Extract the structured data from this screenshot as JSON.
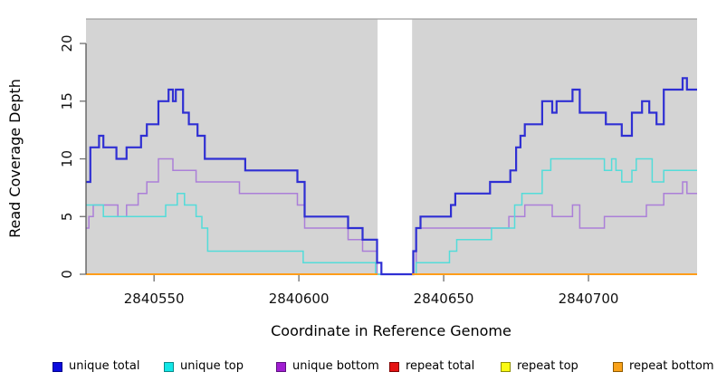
{
  "chart_data": {
    "type": "line",
    "subtype": "step-coverage",
    "title": "",
    "xlabel": "Coordinate in Reference Genome",
    "ylabel": "Read Coverage Depth",
    "xlim": [
      2840526.5,
      2840737.5
    ],
    "ylim": [
      0,
      22.12
    ],
    "grid": false,
    "panel_background": "#d4d4d4",
    "axis_color": "#4a4a4a",
    "tick_color": "#6e6e6e",
    "label_color": "#111111",
    "x_ticks": [
      {
        "value": 2840550,
        "label": "2840550"
      },
      {
        "value": 2840600,
        "label": "2840600"
      },
      {
        "value": 2840650,
        "label": "2840650"
      },
      {
        "value": 2840700,
        "label": "2840700"
      }
    ],
    "y_ticks": [
      {
        "value": 0,
        "label": "0"
      },
      {
        "value": 5,
        "label": "5"
      },
      {
        "value": 10,
        "label": "10"
      },
      {
        "value": 15,
        "label": "15"
      },
      {
        "value": 20,
        "label": "20"
      }
    ],
    "gap_region": {
      "x_start": 2840627.2,
      "x_end": 2840639.1,
      "color": "#ffffff",
      "note": "no-coverage gap; total line sits at 0 inside gap"
    },
    "top_border_color": "#9e9e9e",
    "series": [
      {
        "name": "repeat total",
        "color": "#de2020",
        "width": 2,
        "segments": [
          [
            [
              2840526.5,
              0
            ],
            [
              2840737.5,
              0
            ]
          ]
        ]
      },
      {
        "name": "repeat top",
        "color": "#f2f218",
        "width": 2,
        "segments": [
          [
            [
              2840526.5,
              0
            ],
            [
              2840737.5,
              0
            ]
          ]
        ]
      },
      {
        "name": "unique bottom",
        "color": "#ab7fd8",
        "width": 1.5,
        "segments": [
          [
            [
              2840526.5,
              4
            ],
            [
              2840527.5,
              5
            ],
            [
              2840529,
              6
            ],
            [
              2840537.5,
              5
            ],
            [
              2840540.5,
              6
            ],
            [
              2840544.5,
              7
            ],
            [
              2840547.5,
              8
            ],
            [
              2840551.5,
              10
            ],
            [
              2840556.5,
              9
            ],
            [
              2840564.5,
              8
            ],
            [
              2840579.5,
              7
            ],
            [
              2840599.5,
              6
            ],
            [
              2840602,
              4
            ],
            [
              2840617,
              3
            ],
            [
              2840622,
              2
            ],
            [
              2840627,
              0
            ],
            [
              2840640.5,
              4
            ],
            [
              2840672.5,
              5
            ],
            [
              2840678,
              6
            ],
            [
              2840687.5,
              5
            ],
            [
              2840694.5,
              6
            ],
            [
              2840697,
              4
            ],
            [
              2840705.5,
              5
            ],
            [
              2840720,
              6
            ],
            [
              2840726,
              7
            ],
            [
              2840732.5,
              8
            ],
            [
              2840734,
              7
            ],
            [
              2840737.5,
              7
            ]
          ]
        ]
      },
      {
        "name": "unique top",
        "color": "#53dcd9",
        "width": 1.5,
        "segments": [
          [
            [
              2840526.5,
              6
            ],
            [
              2840532.5,
              5
            ],
            [
              2840554,
              6
            ],
            [
              2840558,
              7
            ],
            [
              2840560.5,
              6
            ],
            [
              2840564.5,
              5
            ],
            [
              2840566.5,
              4
            ],
            [
              2840568.5,
              2
            ],
            [
              2840601.5,
              1
            ],
            [
              2840626.5,
              0
            ],
            [
              2840640.5,
              1
            ],
            [
              2840652,
              2
            ],
            [
              2840654.5,
              3
            ],
            [
              2840666.5,
              4
            ],
            [
              2840674.5,
              6
            ],
            [
              2840677,
              7
            ],
            [
              2840684,
              9
            ],
            [
              2840687,
              10
            ],
            [
              2840705.5,
              9
            ],
            [
              2840708,
              10
            ],
            [
              2840709.5,
              9
            ],
            [
              2840711.5,
              8
            ],
            [
              2840715,
              9
            ],
            [
              2840716.5,
              10
            ],
            [
              2840722,
              8
            ],
            [
              2840726,
              9
            ],
            [
              2840737.5,
              9
            ]
          ]
        ]
      },
      {
        "name": "unique total",
        "color": "#2f2fd3",
        "width": 2.2,
        "segments": [
          [
            [
              2840526.5,
              8
            ],
            [
              2840528,
              11
            ],
            [
              2840531,
              12
            ],
            [
              2840532.5,
              11
            ],
            [
              2840537,
              10
            ],
            [
              2840540.5,
              11
            ],
            [
              2840545.5,
              12
            ],
            [
              2840547.5,
              13
            ],
            [
              2840551.5,
              15
            ],
            [
              2840555,
              16
            ],
            [
              2840556.5,
              15
            ],
            [
              2840557.5,
              16
            ],
            [
              2840560,
              14
            ],
            [
              2840562,
              13
            ],
            [
              2840565,
              12
            ],
            [
              2840567.5,
              10
            ],
            [
              2840581.5,
              9
            ],
            [
              2840599.5,
              8
            ],
            [
              2840602,
              5
            ],
            [
              2840617,
              4
            ],
            [
              2840622,
              3
            ],
            [
              2840627,
              1
            ],
            [
              2840628.5,
              0
            ],
            [
              2840639.5,
              2
            ],
            [
              2840640.5,
              4
            ],
            [
              2840642,
              5
            ],
            [
              2840652.5,
              6
            ],
            [
              2840654,
              7
            ],
            [
              2840666,
              8
            ],
            [
              2840673,
              9
            ],
            [
              2840675,
              11
            ],
            [
              2840676.5,
              12
            ],
            [
              2840678,
              13
            ],
            [
              2840684,
              15
            ],
            [
              2840687.5,
              14
            ],
            [
              2840689,
              15
            ],
            [
              2840694.5,
              16
            ],
            [
              2840697,
              14
            ],
            [
              2840706,
              13
            ],
            [
              2840711.5,
              12
            ],
            [
              2840715,
              14
            ],
            [
              2840718.5,
              15
            ],
            [
              2840721,
              14
            ],
            [
              2840723.5,
              13
            ],
            [
              2840726,
              16
            ],
            [
              2840732.5,
              17
            ],
            [
              2840734,
              16
            ],
            [
              2840737.5,
              16
            ]
          ]
        ]
      },
      {
        "name": "repeat bottom",
        "color": "#ff9d1a",
        "width": 2,
        "segments": [
          [
            [
              2840526.5,
              0
            ],
            [
              2840627.2,
              0
            ]
          ],
          [
            [
              2840639.1,
              0
            ],
            [
              2840737.5,
              0
            ]
          ]
        ]
      }
    ],
    "legend": {
      "position": "bottom",
      "items": [
        {
          "label": "unique total",
          "fill": "#0b0bdf",
          "border": "#00008b"
        },
        {
          "label": "unique top",
          "fill": "#12e7e7",
          "border": "#0a8a8a"
        },
        {
          "label": "unique bottom",
          "fill": "#a11ed2",
          "border": "#5e1080"
        },
        {
          "label": "repeat total",
          "fill": "#e51212",
          "border": "#7e0000"
        },
        {
          "label": "repeat top",
          "fill": "#fafa14",
          "border": "#8f8f00"
        },
        {
          "label": "repeat bottom",
          "fill": "#f9a21a",
          "border": "#8f5a00"
        }
      ]
    }
  }
}
